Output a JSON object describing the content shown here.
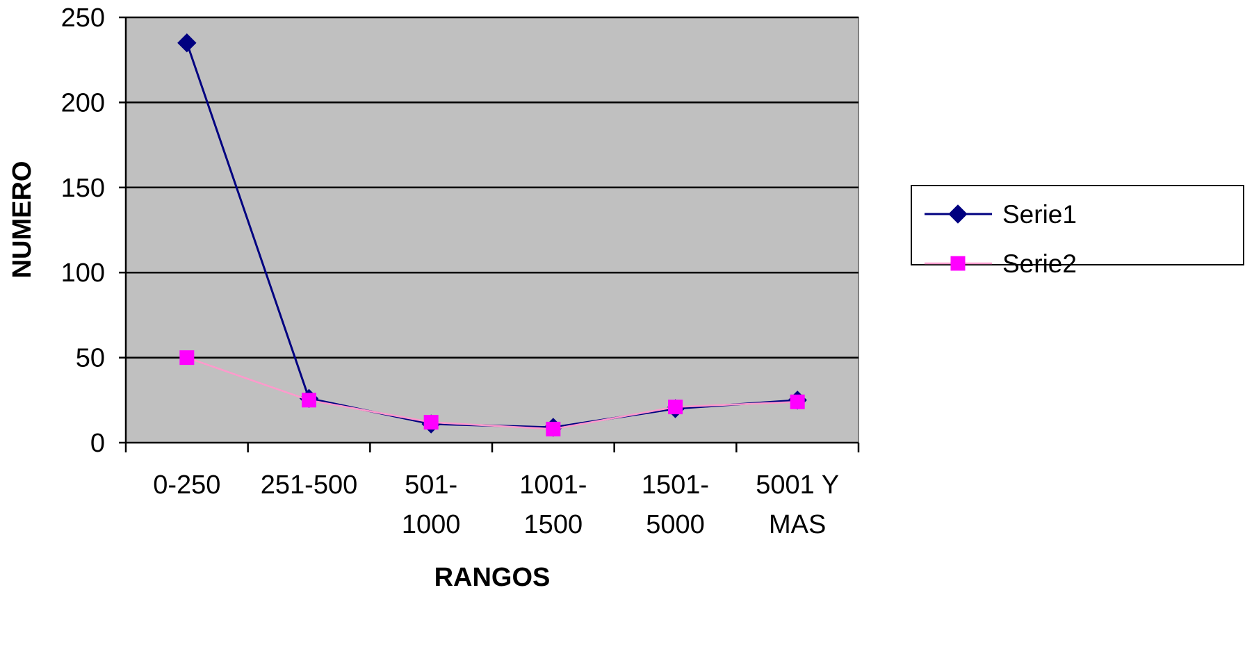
{
  "chart_data": {
    "type": "line",
    "categories": [
      [
        "0-250"
      ],
      [
        "251-500"
      ],
      [
        "501-",
        "1000"
      ],
      [
        "1001-",
        "1500"
      ],
      [
        "1501-",
        "5000"
      ],
      [
        "5001 Y",
        "MAS"
      ]
    ],
    "series": [
      {
        "name": "Serie1",
        "values": [
          235,
          26,
          11,
          9,
          20,
          25
        ],
        "color": "#000080",
        "marker": "diamond"
      },
      {
        "name": "Serie2",
        "values": [
          50,
          25,
          12,
          8,
          21,
          24
        ],
        "color": "#FF99CC",
        "marker_color": "#FF00FF",
        "marker": "square"
      }
    ],
    "xlabel": "RANGOS",
    "ylabel": "NUMERO",
    "ylim": [
      0,
      250
    ],
    "yticks": [
      0,
      50,
      100,
      150,
      200,
      250
    ],
    "grid": true,
    "plot_background": "#C0C0C0",
    "legend_position": "right"
  }
}
